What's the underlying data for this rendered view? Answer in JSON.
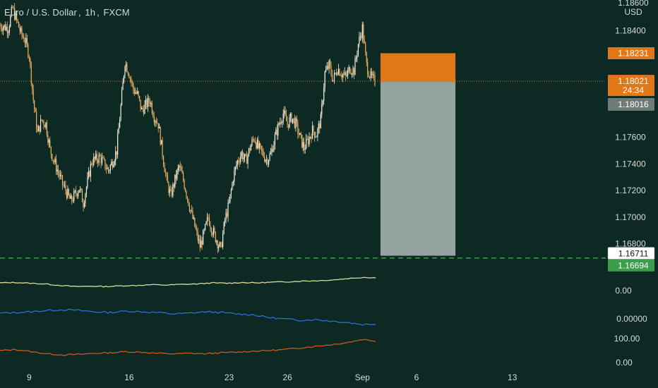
{
  "colors": {
    "background": "#0c2923",
    "candle_up": "#f5f0e6",
    "candle_down": "#f0b060",
    "risk_zone": "#e07818",
    "reward_zone": "#93a39e",
    "current_price_line": "#e07818",
    "target_line": "#3a9d4a",
    "ind1": "#d8dc9a",
    "ind2": "#2f6cd8",
    "ind3": "#d0561c"
  },
  "legend": {
    "symbol_name": "Euro / U.S. Dollar",
    "interval": "1h",
    "exchange": "FXCM"
  },
  "axis": {
    "currency": "USD",
    "top_partial_label": "1.18600"
  },
  "chart_data": [
    {
      "type": "candlestick",
      "title": "Euro / U.S. Dollar, 1h, FXCM",
      "yunit": "USD",
      "ylim": [
        1.1665,
        1.1862
      ],
      "yticks": [
        1.184,
        1.182,
        1.18,
        1.178,
        1.176,
        1.174,
        1.172,
        1.17,
        1.168
      ],
      "ytick_labels": [
        "1.18400",
        "",
        "",
        "",
        "1.17600",
        "1.17400",
        "1.17200",
        "1.17000",
        "1.16800"
      ],
      "x_tick_labels": [
        "9",
        "16",
        "23",
        "26",
        "Sep",
        "6",
        "13"
      ],
      "x_tick_indices": [
        7,
        31,
        55,
        69,
        87,
        100,
        123
      ],
      "price_path": [
        [
          0,
          1.1844
        ],
        [
          2,
          1.1842
        ],
        [
          3,
          1.1857
        ],
        [
          5,
          1.1838
        ],
        [
          6,
          1.1833
        ],
        [
          7,
          1.1822
        ],
        [
          8,
          1.1788
        ],
        [
          9,
          1.1763
        ],
        [
          10,
          1.1773
        ],
        [
          11,
          1.177
        ],
        [
          12,
          1.1751
        ],
        [
          13,
          1.1742
        ],
        [
          15,
          1.1725
        ],
        [
          17,
          1.1712
        ],
        [
          19,
          1.1722
        ],
        [
          20,
          1.1711
        ],
        [
          22,
          1.1742
        ],
        [
          24,
          1.1745
        ],
        [
          26,
          1.1735
        ],
        [
          27,
          1.1742
        ],
        [
          28,
          1.175
        ],
        [
          29,
          1.1783
        ],
        [
          30,
          1.1817
        ],
        [
          31,
          1.1808
        ],
        [
          32,
          1.1796
        ],
        [
          33,
          1.1792
        ],
        [
          34,
          1.178
        ],
        [
          36,
          1.1788
        ],
        [
          37,
          1.1776
        ],
        [
          38,
          1.177
        ],
        [
          39,
          1.1748
        ],
        [
          40,
          1.1727
        ],
        [
          41,
          1.1716
        ],
        [
          42,
          1.1728
        ],
        [
          43,
          1.1738
        ],
        [
          44,
          1.1728
        ],
        [
          45,
          1.1715
        ],
        [
          46,
          1.1702
        ],
        [
          47,
          1.169
        ],
        [
          48,
          1.1678
        ],
        [
          49,
          1.1688
        ],
        [
          50,
          1.17
        ],
        [
          51,
          1.169
        ],
        [
          52,
          1.1683
        ],
        [
          53,
          1.1676
        ],
        [
          54,
          1.1698
        ],
        [
          55,
          1.171
        ],
        [
          56,
          1.173
        ],
        [
          57,
          1.1742
        ],
        [
          58,
          1.1748
        ],
        [
          59,
          1.1742
        ],
        [
          60,
          1.1752
        ],
        [
          61,
          1.176
        ],
        [
          62,
          1.1752
        ],
        [
          63,
          1.1748
        ],
        [
          64,
          1.1743
        ],
        [
          65,
          1.1747
        ],
        [
          66,
          1.176
        ],
        [
          67,
          1.177
        ],
        [
          68,
          1.1778
        ],
        [
          69,
          1.177
        ],
        [
          70,
          1.1775
        ],
        [
          71,
          1.177
        ],
        [
          72,
          1.176
        ],
        [
          73,
          1.1752
        ],
        [
          74,
          1.1758
        ],
        [
          75,
          1.1765
        ],
        [
          76,
          1.1762
        ],
        [
          77,
          1.1773
        ],
        [
          78,
          1.1808
        ],
        [
          79,
          1.1814
        ],
        [
          80,
          1.1803
        ],
        [
          81,
          1.1812
        ],
        [
          82,
          1.1808
        ],
        [
          83,
          1.1805
        ],
        [
          84,
          1.1812
        ],
        [
          85,
          1.181
        ],
        [
          86,
          1.183
        ],
        [
          87,
          1.1842
        ],
        [
          88,
          1.1814
        ],
        [
          89,
          1.1805
        ],
        [
          90,
          1.1802
        ]
      ],
      "last_price": 1.18021,
      "position": {
        "type": "long",
        "entry": 1.18016,
        "stop": 1.18231,
        "target": 1.16711,
        "target_line": 1.16694,
        "start_index": 91,
        "end_index": 109
      },
      "price_labels": {
        "stop": "1.18231",
        "last": "1.18021",
        "countdown": "24:34",
        "entry": "1.18016",
        "target": "1.16711",
        "target_line": "1.16694"
      }
    },
    {
      "type": "line",
      "series": [
        {
          "values": [
            0.5,
            0.52,
            0.48,
            0.44,
            0.36,
            0.3,
            0.32,
            0.3,
            0.34,
            0.36,
            0.4,
            0.38,
            0.42,
            0.44,
            0.5,
            0.48,
            0.52,
            0.5,
            0.54,
            0.56,
            0.6,
            0.62,
            0.66,
            0.74,
            0.8,
            0.78
          ]
        }
      ],
      "yticks": [
        "0.00"
      ]
    },
    {
      "type": "line",
      "series": [
        {
          "values": [
            0.52,
            0.54,
            0.56,
            0.6,
            0.62,
            0.6,
            0.56,
            0.54,
            0.58,
            0.56,
            0.54,
            0.5,
            0.52,
            0.56,
            0.54,
            0.5,
            0.48,
            0.4,
            0.36,
            0.32,
            0.34,
            0.3,
            0.26,
            0.2,
            0.22
          ]
        }
      ],
      "yticks": [
        "0.00000"
      ]
    },
    {
      "type": "line",
      "series": [
        {
          "values": [
            0.5,
            0.54,
            0.46,
            0.38,
            0.34,
            0.36,
            0.4,
            0.42,
            0.46,
            0.44,
            0.4,
            0.38,
            0.4,
            0.38,
            0.42,
            0.44,
            0.48,
            0.5,
            0.54,
            0.6,
            0.66,
            0.72,
            0.8,
            0.92,
            0.84
          ]
        }
      ],
      "yticks": [
        "100.00",
        "0.00"
      ]
    }
  ]
}
